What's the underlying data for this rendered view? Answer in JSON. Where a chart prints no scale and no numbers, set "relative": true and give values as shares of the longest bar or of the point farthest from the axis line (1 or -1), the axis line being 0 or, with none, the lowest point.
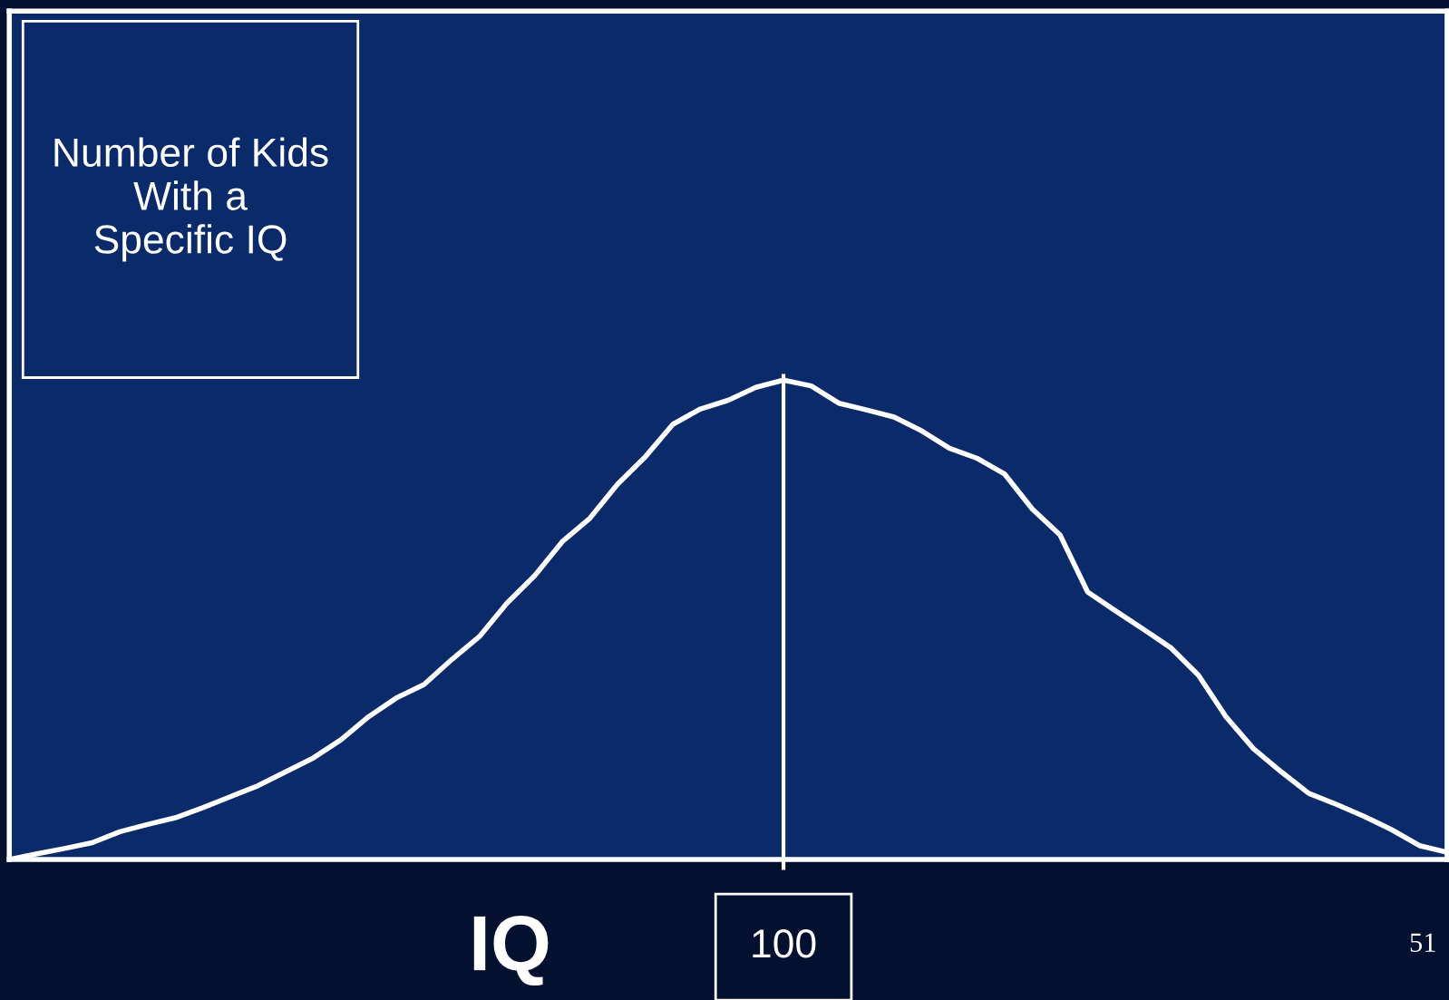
{
  "chart_data": {
    "type": "line",
    "relative": true,
    "xlabel": "IQ",
    "categories": [
      null,
      null,
      null,
      null,
      null,
      null,
      null,
      null,
      null,
      null,
      null,
      null,
      null,
      null,
      null,
      null,
      null,
      null,
      null,
      null,
      null,
      null,
      null,
      null,
      null,
      null,
      null,
      null,
      null,
      null,
      null,
      null,
      null,
      null,
      null,
      null,
      null,
      null,
      null,
      null,
      null,
      null,
      null,
      null,
      null,
      null,
      null,
      null,
      null,
      null,
      null,
      null,
      null
    ],
    "series": [
      {
        "color": "#ffffff",
        "values": [
          0,
          0.012,
          0.023,
          0.035,
          0.058,
          0.073,
          0.087,
          0.108,
          0.131,
          0.154,
          0.183,
          0.212,
          0.25,
          0.298,
          0.337,
          0.365,
          0.417,
          0.465,
          0.535,
          0.592,
          0.663,
          0.712,
          0.783,
          0.84,
          0.908,
          0.94,
          0.958,
          0.985,
          1,
          0.988,
          0.952,
          0.938,
          0.923,
          0.894,
          0.858,
          0.837,
          0.804,
          0.731,
          0.677,
          0.558,
          0.519,
          0.481,
          0.442,
          0.385,
          0.298,
          0.231,
          0.183,
          0.138,
          0.115,
          0.09,
          0.062,
          0.029,
          0.015
        ]
      }
    ],
    "annotations": [
      "Number of Kids\nWith a\nSpecific IQ",
      "100",
      "51"
    ]
  }
}
